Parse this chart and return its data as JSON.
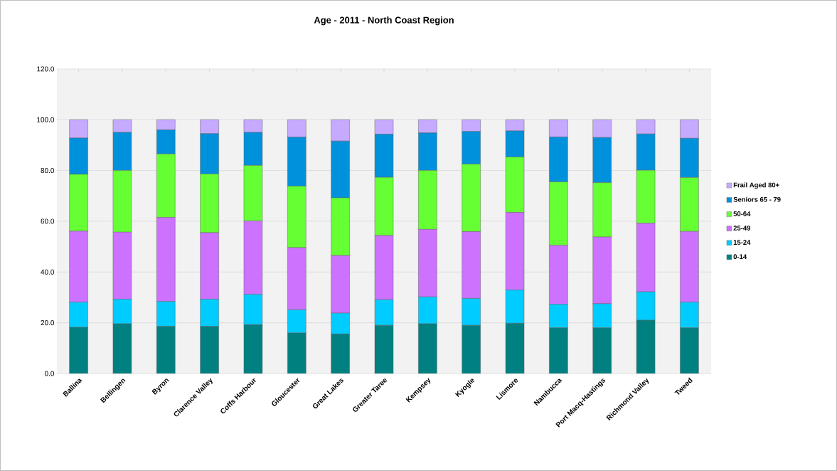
{
  "chart_data": {
    "type": "bar",
    "stacked": true,
    "title": "Age - 2011 - North Coast Region",
    "categories": [
      "Ballina",
      "Bellingen",
      "Byron",
      "Clarence Valley",
      "Coffs Harbour",
      "Gloucester",
      "Great Lakes",
      "Greater Taree",
      "Kempsey",
      "Kyogle",
      "Lismore",
      "Nambucca",
      "Port Macq-Hastings",
      "Richmond Valley",
      "Tweed"
    ],
    "series": [
      {
        "name": "0-14",
        "color": "#008080",
        "values": [
          18.2,
          19.6,
          18.6,
          18.6,
          19.3,
          16.0,
          15.6,
          19.0,
          19.6,
          19.0,
          19.8,
          18.0,
          18.0,
          21.0,
          18.0
        ]
      },
      {
        "name": "15-24",
        "color": "#00ccff",
        "values": [
          9.9,
          9.7,
          9.8,
          10.7,
          11.9,
          9.1,
          8.2,
          10.1,
          10.6,
          10.6,
          13.1,
          9.3,
          9.5,
          11.2,
          10.1
        ]
      },
      {
        "name": "25-49",
        "color": "#cc72ff",
        "values": [
          28.0,
          26.4,
          33.1,
          26.2,
          28.9,
          24.5,
          22.7,
          25.3,
          26.6,
          26.3,
          30.6,
          23.2,
          26.3,
          27.0,
          27.9
        ]
      },
      {
        "name": "50-64",
        "color": "#66ff33",
        "values": [
          22.4,
          24.3,
          25.0,
          23.1,
          21.9,
          24.2,
          22.7,
          22.9,
          23.2,
          26.6,
          21.8,
          25.0,
          21.4,
          20.9,
          21.2
        ]
      },
      {
        "name": "Seniors 65 - 79",
        "color": "#0091dc",
        "values": [
          14.3,
          15.0,
          9.5,
          15.9,
          13.0,
          19.3,
          22.4,
          17.0,
          14.8,
          12.9,
          10.3,
          17.7,
          17.8,
          14.3,
          15.5
        ]
      },
      {
        "name": "Frail Aged 80+",
        "color": "#c6aaff",
        "values": [
          7.2,
          5.0,
          4.0,
          5.5,
          5.0,
          6.9,
          8.4,
          5.7,
          5.2,
          4.6,
          4.4,
          6.8,
          7.0,
          5.6,
          7.3
        ]
      }
    ],
    "ylim": [
      0,
      120
    ],
    "yticks": [
      {
        "value": 0,
        "label": "0.0"
      },
      {
        "value": 20,
        "label": "20.0"
      },
      {
        "value": 40,
        "label": "40.0"
      },
      {
        "value": 60,
        "label": "60.0"
      },
      {
        "value": 80,
        "label": "80.0"
      },
      {
        "value": 100,
        "label": "100.0"
      },
      {
        "value": 120,
        "label": "120.0"
      }
    ],
    "grid": "y",
    "legend": "right"
  }
}
